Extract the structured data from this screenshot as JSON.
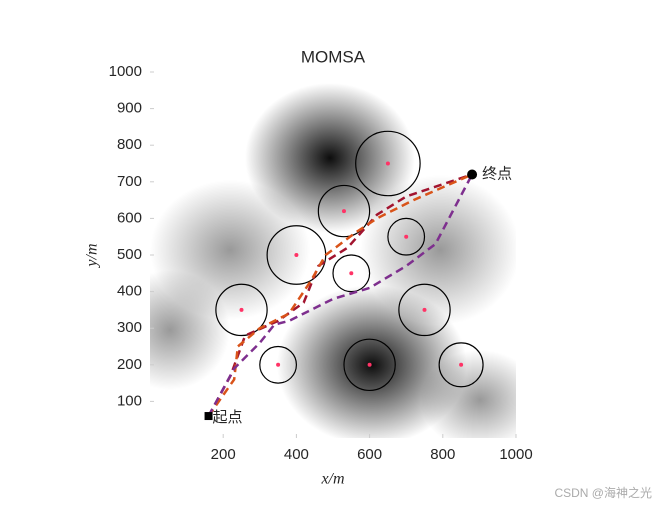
{
  "chart_data": {
    "type": "line",
    "title": "MOMSA",
    "xlabel": "x/m",
    "ylabel": "y/m",
    "xlim": [
      0,
      1000
    ],
    "ylim": [
      0,
      1000
    ],
    "xticks": [
      200,
      400,
      600,
      800,
      1000
    ],
    "yticks": [
      100,
      200,
      300,
      400,
      500,
      600,
      700,
      800,
      900,
      1000
    ],
    "obstacles": {
      "x": [
        650,
        530,
        700,
        400,
        550,
        250,
        750,
        350,
        600,
        850
      ],
      "y": [
        750,
        620,
        550,
        500,
        450,
        350,
        350,
        200,
        200,
        200
      ],
      "r": [
        88,
        70,
        50,
        80,
        50,
        70,
        70,
        50,
        70,
        60
      ],
      "color": "#000000",
      "center_color": "#ff3366"
    },
    "start": {
      "x": 160,
      "y": 60,
      "label": "起点"
    },
    "end": {
      "x": 880,
      "y": 720,
      "label": "终点"
    },
    "series": [
      {
        "color": "#a2142f",
        "x": [
          160,
          220,
          260,
          350,
          420,
          460,
          540,
          620,
          700,
          880
        ],
        "y": [
          60,
          170,
          280,
          320,
          370,
          470,
          520,
          610,
          660,
          720
        ]
      },
      {
        "color": "#d95319",
        "x": [
          160,
          230,
          240,
          300,
          380,
          440,
          480,
          560,
          620,
          720,
          880
        ],
        "y": [
          60,
          160,
          250,
          300,
          340,
          430,
          500,
          560,
          600,
          650,
          720
        ]
      },
      {
        "color": "#7e2f8e",
        "x": [
          160,
          230,
          300,
          340,
          380,
          500,
          600,
          700,
          780,
          880
        ],
        "y": [
          60,
          190,
          260,
          310,
          320,
          380,
          410,
          470,
          530,
          720
        ]
      }
    ]
  },
  "watermark": "CSDN @海神之光"
}
